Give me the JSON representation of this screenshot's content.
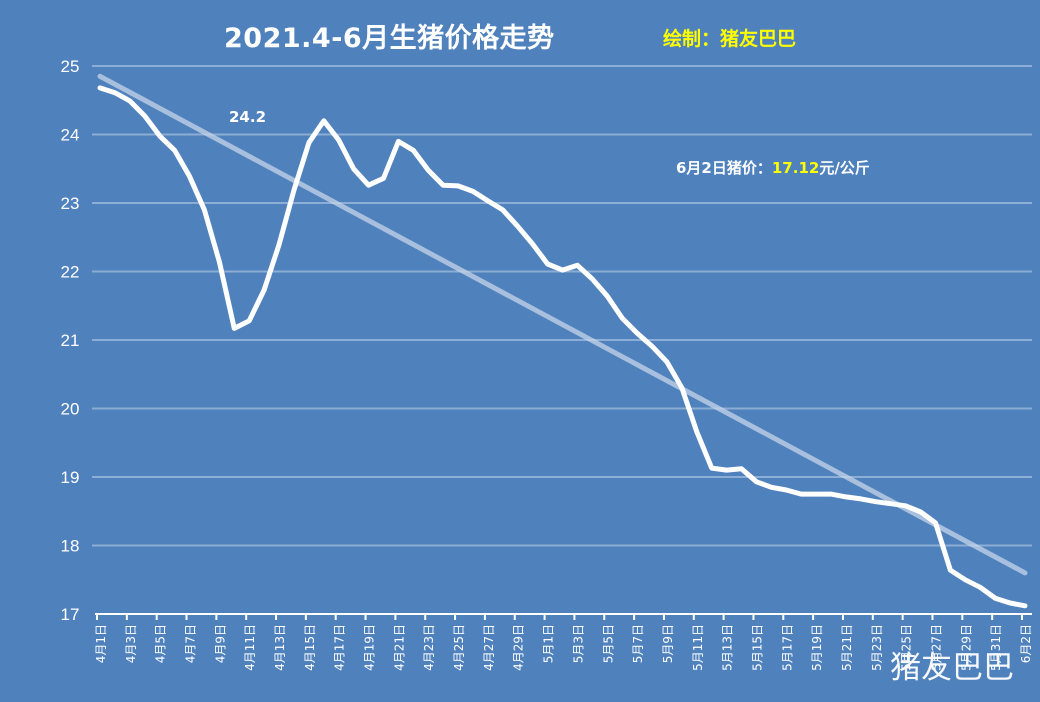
{
  "header": {
    "title": "2021.4-6月生猪价格走势",
    "credit": "绘制：猪友巴巴"
  },
  "annotations": {
    "peak_label": "24.2",
    "latest_prefix": "6月2日猪价：",
    "latest_value": "17.12",
    "latest_unit": "元/公斤"
  },
  "watermark": "猪友巴巴",
  "colors": {
    "background": "#4f81bd",
    "line": "#ffffff",
    "trend": "#b8cce4",
    "highlight": "#ffff00"
  },
  "chart_data": {
    "type": "line",
    "title": "2021.4-6月生猪价格走势",
    "xlabel": "",
    "ylabel": "",
    "ylim": [
      17,
      25
    ],
    "yticks": [
      17,
      18,
      19,
      20,
      21,
      22,
      23,
      24,
      25
    ],
    "grid": true,
    "legend": "none",
    "trendline": {
      "type": "linear",
      "start": 24.85,
      "end": 17.6
    },
    "x": [
      "4月1日",
      "4月2日",
      "4月3日",
      "4月4日",
      "4月5日",
      "4月6日",
      "4月7日",
      "4月8日",
      "4月9日",
      "4月10日",
      "4月11日",
      "4月12日",
      "4月13日",
      "4月14日",
      "4月15日",
      "4月16日",
      "4月17日",
      "4月18日",
      "4月19日",
      "4月20日",
      "4月21日",
      "4月22日",
      "4月23日",
      "4月24日",
      "4月25日",
      "4月26日",
      "4月27日",
      "4月28日",
      "4月29日",
      "4月30日",
      "5月1日",
      "5月2日",
      "5月3日",
      "5月4日",
      "5月5日",
      "5月6日",
      "5月7日",
      "5月8日",
      "5月9日",
      "5月10日",
      "5月11日",
      "5月12日",
      "5月13日",
      "5月14日",
      "5月15日",
      "5月16日",
      "5月17日",
      "5月18日",
      "5月19日",
      "5月20日",
      "5月21日",
      "5月22日",
      "5月23日",
      "5月24日",
      "5月25日",
      "5月26日",
      "5月27日",
      "5月28日",
      "5月29日",
      "5月30日",
      "5月31日",
      "6月1日",
      "6月2日"
    ],
    "xtick_labels": [
      "4月1日",
      "4月3日",
      "4月5日",
      "4月7日",
      "4月9日",
      "4月11日",
      "4月13日",
      "4月15日",
      "4月17日",
      "4月19日",
      "4月21日",
      "4月23日",
      "4月25日",
      "4月27日",
      "4月29日",
      "5月1日",
      "5月3日",
      "5月5日",
      "5月7日",
      "5月9日",
      "5月11日",
      "5月13日",
      "5月15日",
      "5月17日",
      "5月19日",
      "5月21日",
      "5月23日",
      "5月25日",
      "5月27日",
      "5月29日",
      "5月31日",
      "6月2日"
    ],
    "series": [
      {
        "name": "生猪价格",
        "values": [
          24.68,
          24.61,
          24.49,
          24.27,
          23.98,
          23.77,
          23.39,
          22.9,
          22.14,
          21.17,
          21.28,
          21.73,
          22.39,
          23.19,
          23.88,
          24.2,
          23.92,
          23.5,
          23.26,
          23.36,
          23.9,
          23.77,
          23.48,
          23.26,
          23.25,
          23.17,
          23.03,
          22.9,
          22.66,
          22.4,
          22.11,
          22.02,
          22.09,
          21.89,
          21.64,
          21.32,
          21.1,
          20.91,
          20.68,
          20.3,
          19.66,
          19.13,
          19.1,
          19.12,
          18.93,
          18.85,
          18.81,
          18.75,
          18.75,
          18.75,
          18.71,
          18.68,
          18.64,
          18.61,
          18.58,
          18.49,
          18.33,
          17.64,
          17.5,
          17.39,
          17.23,
          17.16,
          17.12
        ]
      }
    ]
  }
}
